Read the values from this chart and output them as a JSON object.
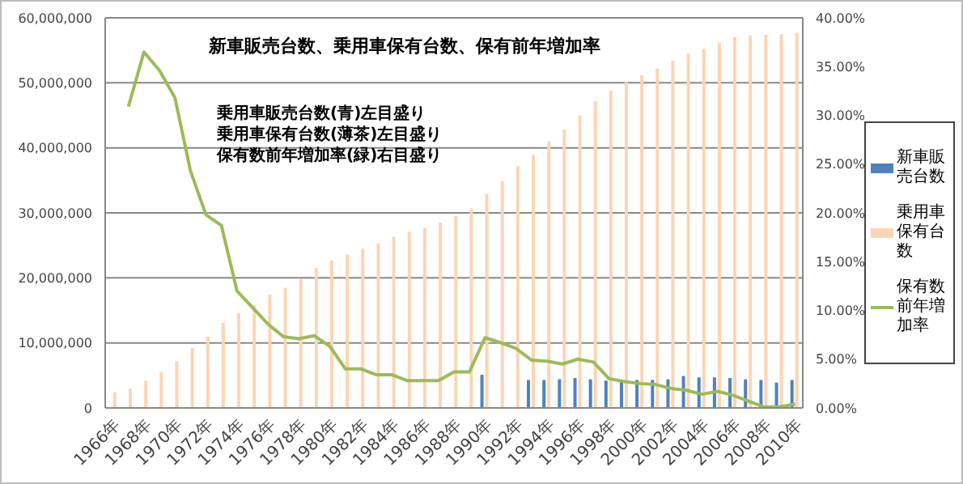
{
  "chart_data": {
    "type": "bar",
    "title": "新車販売台数、乗用車保有台数、保有前年増加率",
    "annotations": [
      "乗用車販売台数(青)左目盛り",
      "乗用車保有台数(薄茶)左目盛り",
      "保有数前年増加率(緑)右目盛り"
    ],
    "categories": [
      "1966年",
      null,
      "1968年",
      null,
      "1970年",
      null,
      "1972年",
      null,
      "1974年",
      null,
      "1976年",
      null,
      "1978年",
      null,
      "1980年",
      null,
      "1982年",
      null,
      "1984年",
      null,
      "1986年",
      null,
      "1988年",
      null,
      "1990年",
      null,
      "1992年",
      null,
      "1994年",
      null,
      "1996年",
      null,
      "1998年",
      null,
      "2000年",
      null,
      "2002年",
      null,
      "2004年",
      null,
      "2006年",
      null,
      "2008年",
      null,
      "2010年"
    ],
    "series": [
      {
        "name": "新車販売台数",
        "color": "#4f81bd",
        "values": [
          null,
          null,
          null,
          null,
          null,
          null,
          null,
          null,
          null,
          null,
          null,
          null,
          null,
          null,
          null,
          null,
          null,
          null,
          null,
          null,
          null,
          null,
          null,
          null,
          5100000,
          null,
          null,
          4300000,
          4300000,
          4400000,
          4600000,
          4400000,
          4200000,
          4100000,
          4300000,
          4300000,
          4400000,
          4900000,
          4700000,
          4700000,
          4600000,
          4400000,
          4300000,
          3900000,
          4300000
        ]
      },
      {
        "name": "乗用車保有台数",
        "color": "#fbd5b5",
        "values": [
          2400000,
          3000000,
          4200000,
          5500000,
          7200000,
          9200000,
          11000000,
          13100000,
          14600000,
          15800000,
          17400000,
          18500000,
          19900000,
          21500000,
          22700000,
          23600000,
          24500000,
          25300000,
          26300000,
          27100000,
          27700000,
          28500000,
          29500000,
          30700000,
          32900000,
          34900000,
          37200000,
          38900000,
          41000000,
          42800000,
          45000000,
          47200000,
          48800000,
          50100000,
          51200000,
          52200000,
          53400000,
          54500000,
          55200000,
          56200000,
          57000000,
          57300000,
          57400000,
          57500000,
          57700000
        ]
      },
      {
        "name": "保有数前年増加率",
        "type": "line",
        "axis": "y2",
        "color": "#9bbb59",
        "values": [
          null,
          30.9,
          36.5,
          34.6,
          31.8,
          24.3,
          19.8,
          18.7,
          12.0,
          10.3,
          8.6,
          7.3,
          7.1,
          7.4,
          6.3,
          4.0,
          4.0,
          3.4,
          3.4,
          2.8,
          2.8,
          2.8,
          3.7,
          3.7,
          7.2,
          6.7,
          6.1,
          4.9,
          4.8,
          4.5,
          5.0,
          4.7,
          3.0,
          2.7,
          2.5,
          2.4,
          2.0,
          1.8,
          1.4,
          1.7,
          1.3,
          0.7,
          0.1,
          0.1,
          0.4
        ]
      }
    ],
    "ylim": [
      0,
      60000000
    ],
    "yticks": [
      {
        "value": 0,
        "label": "0"
      },
      {
        "value": 10000000,
        "label": "10,000,000"
      },
      {
        "value": 20000000,
        "label": "20,000,000"
      },
      {
        "value": 30000000,
        "label": "30,000,000"
      },
      {
        "value": 40000000,
        "label": "40,000,000"
      },
      {
        "value": 50000000,
        "label": "50,000,000"
      },
      {
        "value": 60000000,
        "label": "60,000,000"
      }
    ],
    "y2lim": [
      0,
      40
    ],
    "y2ticks": [
      {
        "value": 0,
        "label": "0.00%"
      },
      {
        "value": 5,
        "label": "5.00%"
      },
      {
        "value": 10,
        "label": "10.00%"
      },
      {
        "value": 15,
        "label": "15.00%"
      },
      {
        "value": 20,
        "label": "20.00%"
      },
      {
        "value": 25,
        "label": "25.00%"
      },
      {
        "value": 30,
        "label": "30.00%"
      },
      {
        "value": 35,
        "label": "35.00%"
      },
      {
        "value": 40,
        "label": "40.00%"
      }
    ],
    "grid": "y",
    "legend": "right",
    "marker": "none",
    "line_style": "solid"
  }
}
